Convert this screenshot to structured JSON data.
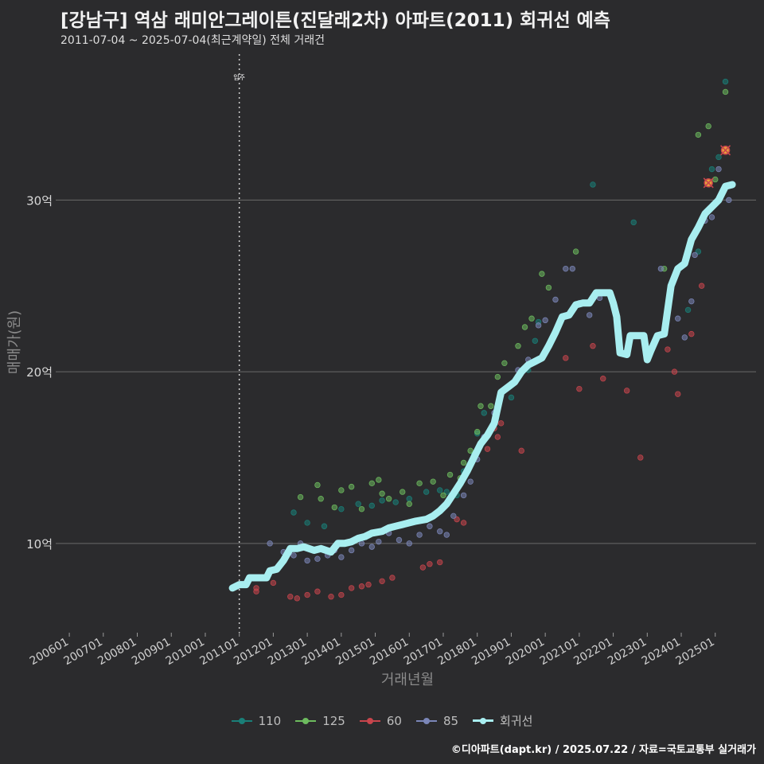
{
  "header": {
    "title": "[강남구] 역삼 래미안그레이튼(진달래2차) 아파트(2011) 회귀선 예측",
    "subtitle": "2011-07-04 ~ 2025-07-04(최근계약일) 전체 거래건"
  },
  "footer": {
    "credit": "©디아파트(dapt.kr) / 2025.07.22 / 자료=국토교통부 실거래가"
  },
  "chart_data": {
    "type": "scatter",
    "title": "[강남구] 역삼 래미안그레이튼(진달래2차) 아파트(2011) 회귀선 예측",
    "xlabel": "거래년월",
    "ylabel": "매매가(원)",
    "xlim": [
      2005.6,
      2026.2
    ],
    "ylim": [
      4.8,
      38.5
    ],
    "x_ticks": [
      2006,
      2007,
      2008,
      2009,
      2010,
      2011,
      2012,
      2013,
      2014,
      2015,
      2016,
      2017,
      2018,
      2019,
      2020,
      2021,
      2022,
      2023,
      2024,
      2025
    ],
    "x_tick_labels": [
      "200601",
      "200701",
      "200801",
      "200901",
      "201001",
      "201101",
      "201201",
      "201301",
      "201401",
      "201501",
      "201601",
      "201701",
      "201801",
      "201901",
      "202001",
      "202101",
      "202201",
      "202301",
      "202401",
      "202501"
    ],
    "y_ticks": [
      10,
      20,
      30
    ],
    "y_tick_labels": [
      "10억",
      "20억",
      "30억"
    ],
    "vline": {
      "x": 2011.0,
      "label": "입주"
    },
    "legend": [
      {
        "name": "110",
        "color": "#1a7f78"
      },
      {
        "name": "125",
        "color": "#6dbb5e"
      },
      {
        "name": "60",
        "color": "#c8454c"
      },
      {
        "name": "85",
        "color": "#7b86b8"
      },
      {
        "name": "회귀선",
        "color": "#a8eef0"
      }
    ],
    "series": [
      {
        "name": "110",
        "color": "#1a7f78",
        "points": [
          [
            2012.6,
            11.8
          ],
          [
            2013.0,
            11.2
          ],
          [
            2013.5,
            11.0
          ],
          [
            2014.0,
            12.0
          ],
          [
            2014.5,
            12.3
          ],
          [
            2014.9,
            12.2
          ],
          [
            2015.2,
            12.5
          ],
          [
            2015.6,
            12.4
          ],
          [
            2016.0,
            12.6
          ],
          [
            2016.5,
            13.0
          ],
          [
            2016.9,
            13.1
          ],
          [
            2017.1,
            13.0
          ],
          [
            2017.4,
            12.8
          ],
          [
            2017.6,
            14.2
          ],
          [
            2017.9,
            15.2
          ],
          [
            2018.0,
            16.4
          ],
          [
            2018.2,
            17.6
          ],
          [
            2018.6,
            17.8
          ],
          [
            2019.0,
            18.5
          ],
          [
            2019.5,
            20.1
          ],
          [
            2019.7,
            21.8
          ],
          [
            2019.8,
            22.9
          ],
          [
            2021.4,
            30.9
          ],
          [
            2022.6,
            28.7
          ],
          [
            2024.2,
            23.6
          ],
          [
            2024.5,
            27.0
          ],
          [
            2024.9,
            31.8
          ],
          [
            2025.1,
            32.5
          ],
          [
            2025.3,
            36.9
          ]
        ]
      },
      {
        "name": "125",
        "color": "#6dbb5e",
        "points": [
          [
            2012.8,
            12.7
          ],
          [
            2013.3,
            13.4
          ],
          [
            2013.4,
            12.6
          ],
          [
            2013.8,
            12.1
          ],
          [
            2014.0,
            13.1
          ],
          [
            2014.3,
            13.3
          ],
          [
            2014.6,
            12.0
          ],
          [
            2014.9,
            13.5
          ],
          [
            2015.1,
            13.7
          ],
          [
            2015.2,
            12.9
          ],
          [
            2015.4,
            12.6
          ],
          [
            2015.8,
            13.0
          ],
          [
            2016.0,
            12.3
          ],
          [
            2016.3,
            13.5
          ],
          [
            2016.7,
            13.6
          ],
          [
            2017.0,
            12.8
          ],
          [
            2017.2,
            14.0
          ],
          [
            2017.5,
            13.8
          ],
          [
            2017.6,
            14.7
          ],
          [
            2017.8,
            15.4
          ],
          [
            2018.0,
            16.5
          ],
          [
            2018.1,
            18.0
          ],
          [
            2018.4,
            18.0
          ],
          [
            2018.6,
            19.7
          ],
          [
            2018.8,
            20.5
          ],
          [
            2019.2,
            21.5
          ],
          [
            2019.4,
            22.6
          ],
          [
            2019.6,
            23.1
          ],
          [
            2019.9,
            25.7
          ],
          [
            2020.1,
            24.9
          ],
          [
            2020.9,
            27.0
          ],
          [
            2023.5,
            26.0
          ],
          [
            2024.5,
            33.8
          ],
          [
            2024.8,
            34.3
          ],
          [
            2025.0,
            31.2
          ],
          [
            2025.3,
            36.3
          ]
        ]
      },
      {
        "name": "60",
        "color": "#c8454c",
        "points": [
          [
            2011.5,
            7.4
          ],
          [
            2011.5,
            7.2
          ],
          [
            2012.0,
            7.7
          ],
          [
            2012.5,
            6.9
          ],
          [
            2012.7,
            6.8
          ],
          [
            2013.0,
            7.0
          ],
          [
            2013.3,
            7.2
          ],
          [
            2013.7,
            6.9
          ],
          [
            2014.0,
            7.0
          ],
          [
            2014.3,
            7.4
          ],
          [
            2014.6,
            7.5
          ],
          [
            2014.8,
            7.6
          ],
          [
            2015.2,
            7.8
          ],
          [
            2015.5,
            8.0
          ],
          [
            2016.4,
            8.6
          ],
          [
            2016.6,
            8.8
          ],
          [
            2016.9,
            8.9
          ],
          [
            2017.4,
            11.4
          ],
          [
            2017.6,
            11.2
          ],
          [
            2017.8,
            14.6
          ],
          [
            2018.3,
            15.5
          ],
          [
            2018.5,
            16.7
          ],
          [
            2018.6,
            16.2
          ],
          [
            2018.7,
            17.0
          ],
          [
            2019.3,
            15.4
          ],
          [
            2020.6,
            20.8
          ],
          [
            2021.0,
            19.0
          ],
          [
            2021.4,
            21.5
          ],
          [
            2021.7,
            19.6
          ],
          [
            2022.4,
            18.9
          ],
          [
            2022.8,
            15.0
          ],
          [
            2023.6,
            21.3
          ],
          [
            2023.8,
            20.0
          ],
          [
            2023.9,
            18.7
          ],
          [
            2024.3,
            22.2
          ],
          [
            2024.6,
            25.0
          ],
          [
            2024.8,
            31.0
          ],
          [
            2025.3,
            32.9
          ]
        ]
      },
      {
        "name": "85",
        "color": "#7b86b8",
        "points": [
          [
            2011.9,
            10.0
          ],
          [
            2012.3,
            9.5
          ],
          [
            2012.6,
            9.3
          ],
          [
            2012.8,
            10.0
          ],
          [
            2013.0,
            9.0
          ],
          [
            2013.3,
            9.1
          ],
          [
            2013.6,
            9.3
          ],
          [
            2013.8,
            9.6
          ],
          [
            2014.0,
            9.2
          ],
          [
            2014.3,
            9.6
          ],
          [
            2014.6,
            10.0
          ],
          [
            2014.9,
            9.8
          ],
          [
            2015.1,
            10.1
          ],
          [
            2015.4,
            10.6
          ],
          [
            2015.7,
            10.2
          ],
          [
            2016.0,
            10.0
          ],
          [
            2016.3,
            10.5
          ],
          [
            2016.6,
            11.0
          ],
          [
            2016.9,
            10.7
          ],
          [
            2017.1,
            10.5
          ],
          [
            2017.3,
            11.6
          ],
          [
            2017.6,
            12.8
          ],
          [
            2017.8,
            13.6
          ],
          [
            2018.0,
            14.9
          ],
          [
            2018.2,
            16.2
          ],
          [
            2018.5,
            17.6
          ],
          [
            2018.7,
            18.6
          ],
          [
            2018.9,
            19.1
          ],
          [
            2019.2,
            20.1
          ],
          [
            2019.5,
            20.7
          ],
          [
            2019.8,
            22.7
          ],
          [
            2020.0,
            23.0
          ],
          [
            2020.3,
            24.2
          ],
          [
            2020.6,
            26.0
          ],
          [
            2020.8,
            26.0
          ],
          [
            2021.0,
            24.0
          ],
          [
            2021.3,
            23.3
          ],
          [
            2021.6,
            24.3
          ],
          [
            2023.4,
            26.0
          ],
          [
            2023.9,
            23.1
          ],
          [
            2024.1,
            22.0
          ],
          [
            2024.3,
            24.1
          ],
          [
            2024.4,
            26.8
          ],
          [
            2024.7,
            28.8
          ],
          [
            2024.9,
            29.0
          ],
          [
            2025.1,
            31.8
          ],
          [
            2025.4,
            30.0
          ]
        ]
      }
    ],
    "regression": {
      "name": "회귀선",
      "color": "#a8eef0",
      "points": [
        [
          2010.8,
          7.4
        ],
        [
          2011.0,
          7.6
        ],
        [
          2011.2,
          7.6
        ],
        [
          2011.3,
          8.0
        ],
        [
          2011.5,
          8.0
        ],
        [
          2011.8,
          8.0
        ],
        [
          2011.9,
          8.4
        ],
        [
          2012.1,
          8.5
        ],
        [
          2012.3,
          9.0
        ],
        [
          2012.5,
          9.7
        ],
        [
          2012.7,
          9.7
        ],
        [
          2012.9,
          9.8
        ],
        [
          2013.2,
          9.6
        ],
        [
          2013.4,
          9.7
        ],
        [
          2013.7,
          9.5
        ],
        [
          2013.9,
          10.0
        ],
        [
          2014.1,
          10.0
        ],
        [
          2014.3,
          10.1
        ],
        [
          2014.5,
          10.3
        ],
        [
          2014.7,
          10.4
        ],
        [
          2014.9,
          10.6
        ],
        [
          2015.2,
          10.7
        ],
        [
          2015.4,
          10.9
        ],
        [
          2015.6,
          11.0
        ],
        [
          2015.8,
          11.1
        ],
        [
          2016.0,
          11.2
        ],
        [
          2016.2,
          11.3
        ],
        [
          2016.5,
          11.4
        ],
        [
          2016.7,
          11.6
        ],
        [
          2016.9,
          11.9
        ],
        [
          2017.1,
          12.3
        ],
        [
          2017.3,
          12.9
        ],
        [
          2017.5,
          13.5
        ],
        [
          2017.7,
          14.2
        ],
        [
          2017.9,
          15.0
        ],
        [
          2018.1,
          15.8
        ],
        [
          2018.3,
          16.3
        ],
        [
          2018.5,
          17.0
        ],
        [
          2018.7,
          18.8
        ],
        [
          2018.9,
          19.1
        ],
        [
          2019.1,
          19.4
        ],
        [
          2019.3,
          20.0
        ],
        [
          2019.5,
          20.4
        ],
        [
          2019.7,
          20.6
        ],
        [
          2019.9,
          20.8
        ],
        [
          2020.1,
          21.5
        ],
        [
          2020.3,
          22.3
        ],
        [
          2020.5,
          23.2
        ],
        [
          2020.7,
          23.3
        ],
        [
          2020.9,
          23.9
        ],
        [
          2021.1,
          24.0
        ],
        [
          2021.3,
          24.0
        ],
        [
          2021.5,
          24.6
        ],
        [
          2021.7,
          24.6
        ],
        [
          2021.9,
          24.6
        ],
        [
          2022.0,
          24.0
        ],
        [
          2022.1,
          23.2
        ],
        [
          2022.2,
          21.1
        ],
        [
          2022.4,
          21.0
        ],
        [
          2022.5,
          22.1
        ],
        [
          2022.7,
          22.1
        ],
        [
          2022.9,
          22.1
        ],
        [
          2023.0,
          20.7
        ],
        [
          2023.1,
          21.2
        ],
        [
          2023.3,
          22.1
        ],
        [
          2023.5,
          22.2
        ],
        [
          2023.7,
          25.0
        ],
        [
          2023.9,
          26.0
        ],
        [
          2024.1,
          26.3
        ],
        [
          2024.3,
          27.7
        ],
        [
          2024.5,
          28.4
        ],
        [
          2024.7,
          29.2
        ],
        [
          2024.9,
          29.6
        ],
        [
          2025.1,
          30.0
        ],
        [
          2025.3,
          30.8
        ],
        [
          2025.5,
          30.9
        ]
      ]
    },
    "highlight_points": [
      [
        2024.8,
        31.0
      ],
      [
        2025.3,
        32.9
      ]
    ]
  }
}
